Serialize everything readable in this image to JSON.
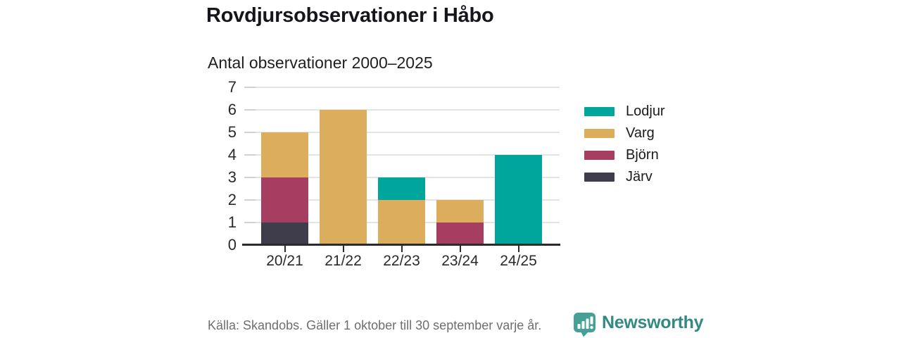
{
  "header": {
    "title": "Rovdjursobservationer i Håbo",
    "subtitle": "Antal observationer 2000–2025"
  },
  "chart_data": {
    "type": "bar",
    "stacked": true,
    "title": "Rovdjursobservationer i Håbo",
    "subtitle": "Antal observationer 2000–2025",
    "categories": [
      "20/21",
      "21/22",
      "22/23",
      "23/24",
      "24/25"
    ],
    "series": [
      {
        "name": "Lodjur",
        "color": "#00A69C",
        "values": [
          0,
          0,
          1,
          0,
          4
        ]
      },
      {
        "name": "Varg",
        "color": "#DBAD5C",
        "values": [
          2,
          6,
          2,
          1,
          0
        ]
      },
      {
        "name": "Björn",
        "color": "#A63E61",
        "values": [
          2,
          0,
          0,
          1,
          0
        ]
      },
      {
        "name": "Järv",
        "color": "#3F3C4B",
        "values": [
          1,
          0,
          0,
          0,
          0
        ]
      }
    ],
    "stack_order_bottom_to_top": [
      "Järv",
      "Björn",
      "Varg",
      "Lodjur"
    ],
    "totals": [
      5,
      6,
      3,
      2,
      4
    ],
    "xlabel": "",
    "ylabel": "",
    "ylim": [
      0,
      7
    ],
    "yticks": [
      0,
      1,
      2,
      3,
      4,
      5,
      6,
      7
    ],
    "grid": true,
    "legend_position": "right"
  },
  "footer": {
    "source": "Källa: Skandobs. Gäller 1 oktober till 30 september varje år.",
    "brand": "Newsworthy"
  },
  "colors": {
    "lodjur": "#00A69C",
    "varg": "#DBAD5C",
    "bjorn": "#A63E61",
    "jarv": "#3F3C4B",
    "axis_line": "#2b2b2b",
    "gridline": "#e4e4e4",
    "text": "#1b1b1b",
    "source_text": "#6e6e6e",
    "brand_teal": "#338a7e",
    "brand_icon_teal": "#46a096"
  }
}
